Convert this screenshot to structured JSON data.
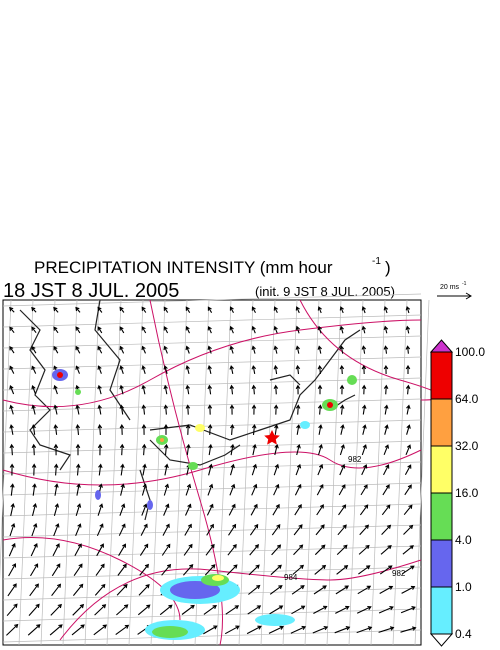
{
  "header": {
    "title": "PRECIPITATION INTENSITY (mm hour",
    "title_exponent": "-1",
    "title_close": ")",
    "valid_time": "18 JST 8 JUL. 2005",
    "init_time": "(init. 9 JST 8 JUL. 2005)"
  },
  "vector_legend": {
    "label": "20 ms",
    "exponent": "-1"
  },
  "contour_labels": [
    "982",
    "984",
    "982"
  ],
  "colorbar": {
    "labels": [
      "100.0",
      "64.0",
      "32.0",
      "16.0",
      "4.0",
      "1.0",
      "0.4"
    ],
    "colors": [
      "#ee0000",
      "#ffa040",
      "#ffff66",
      "#66dd55",
      "#6666ee",
      "#66eeff"
    ],
    "over_color": "#cc33cc",
    "under_color": "#ffffff"
  }
}
